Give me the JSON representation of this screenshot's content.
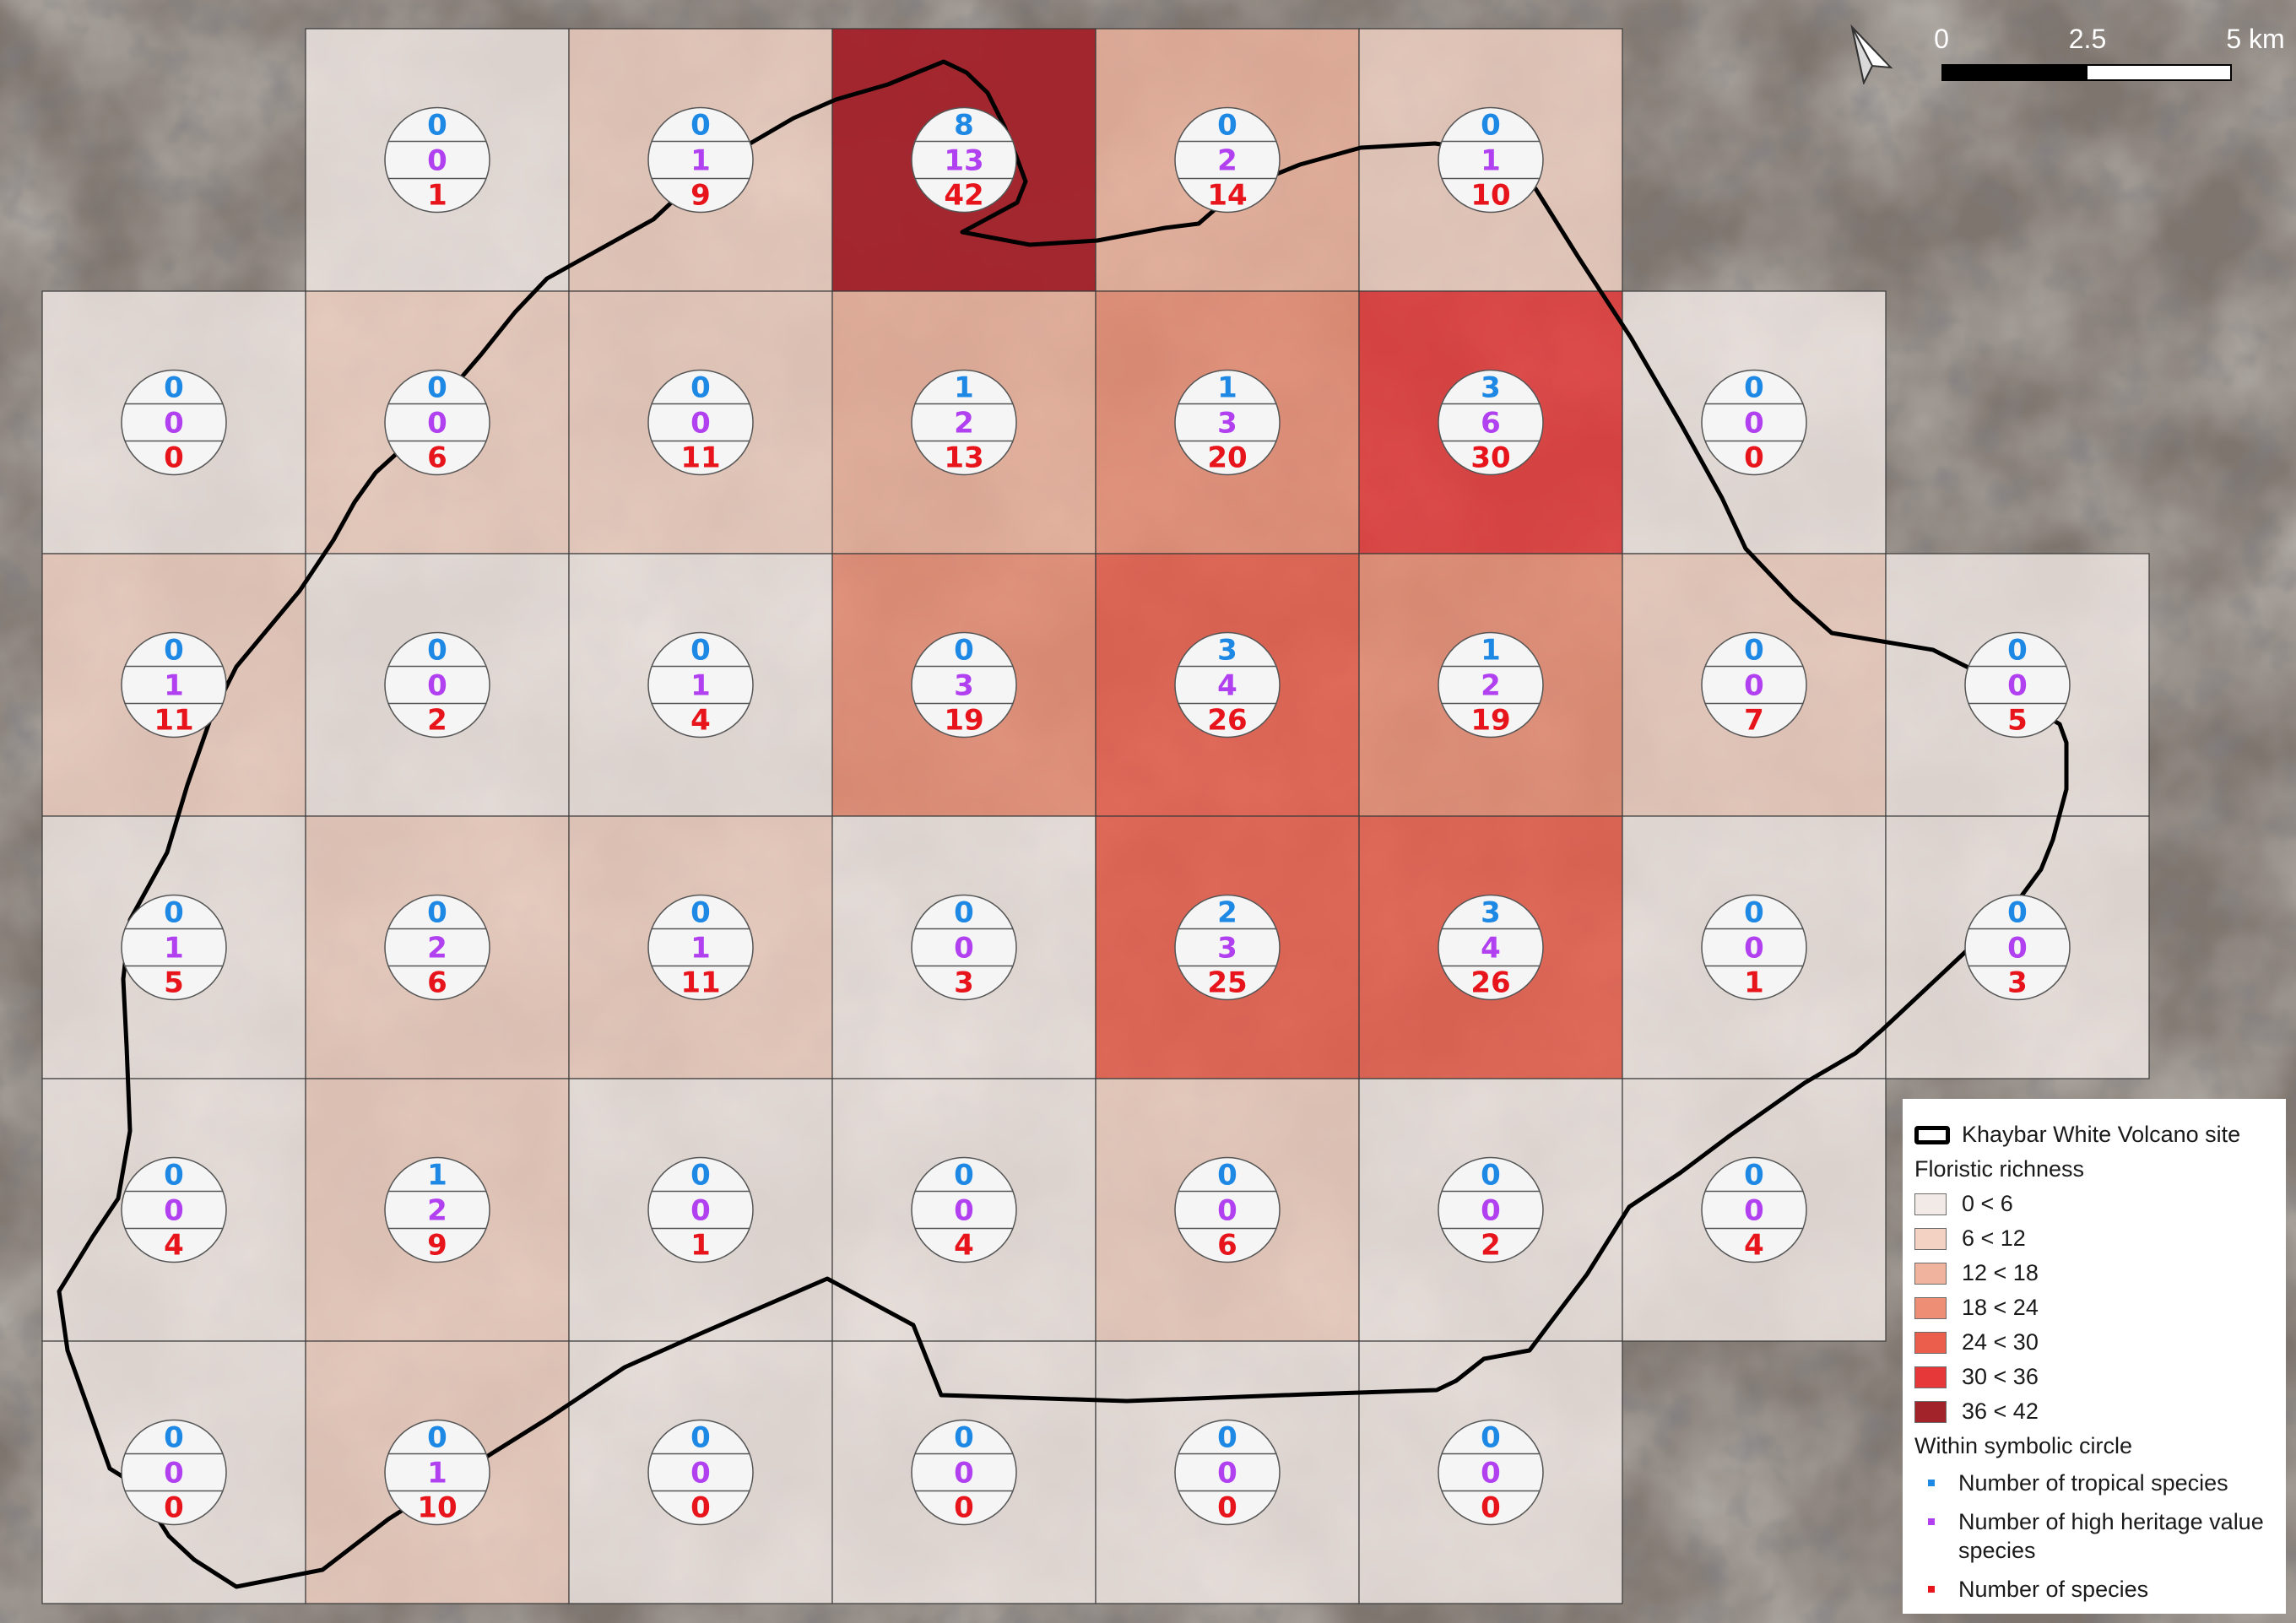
{
  "colors": {
    "tropical": "#1E88E5",
    "heritage": "#B040F0",
    "species": "#E8141B",
    "site_boundary": "#000000",
    "classes": [
      "#F2EAE6",
      "#F3D2C4",
      "#F0B49E",
      "#EE8E74",
      "#EC5E4C",
      "#E63838",
      "#A3232B"
    ],
    "background": "#7E756E"
  },
  "scale": {
    "labels": [
      "0",
      "2.5",
      "5 km"
    ]
  },
  "north_arrow": {
    "icon": "north-arrow-icon"
  },
  "legend": {
    "site_label": "Khaybar White Volcano site",
    "richness_title": "Floristic richness",
    "classes": [
      "0 < 6",
      "6 < 12",
      "12 < 18",
      "18 < 24",
      "24 < 30",
      "30 < 36",
      "36 < 42"
    ],
    "circle_title": "Within symbolic circle",
    "items": [
      {
        "label": "Number of tropical species",
        "color_key": "tropical"
      },
      {
        "label": "Number of high heritage value species",
        "color_key": "heritage"
      },
      {
        "label": "Number of species",
        "color_key": "species"
      }
    ]
  },
  "grid": {
    "rows": 6,
    "cols": 8,
    "cells": [
      {
        "row": 0,
        "col": 1,
        "tropical": "0",
        "heritage": "0",
        "species": "1"
      },
      {
        "row": 0,
        "col": 2,
        "tropical": "0",
        "heritage": "1",
        "species": "9"
      },
      {
        "row": 0,
        "col": 3,
        "tropical": "8",
        "heritage": "13",
        "species": "42"
      },
      {
        "row": 0,
        "col": 4,
        "tropical": "0",
        "heritage": "2",
        "species": "14"
      },
      {
        "row": 0,
        "col": 5,
        "tropical": "0",
        "heritage": "1",
        "species": "10"
      },
      {
        "row": 1,
        "col": 0,
        "tropical": "0",
        "heritage": "0",
        "species": "0"
      },
      {
        "row": 1,
        "col": 1,
        "tropical": "0",
        "heritage": "0",
        "species": "6"
      },
      {
        "row": 1,
        "col": 2,
        "tropical": "0",
        "heritage": "0",
        "species": "11"
      },
      {
        "row": 1,
        "col": 3,
        "tropical": "1",
        "heritage": "2",
        "species": "13"
      },
      {
        "row": 1,
        "col": 4,
        "tropical": "1",
        "heritage": "3",
        "species": "20"
      },
      {
        "row": 1,
        "col": 5,
        "tropical": "3",
        "heritage": "6",
        "species": "30"
      },
      {
        "row": 1,
        "col": 6,
        "tropical": "0",
        "heritage": "0",
        "species": "0"
      },
      {
        "row": 2,
        "col": 0,
        "tropical": "0",
        "heritage": "1",
        "species": "11"
      },
      {
        "row": 2,
        "col": 1,
        "tropical": "0",
        "heritage": "0",
        "species": "2"
      },
      {
        "row": 2,
        "col": 2,
        "tropical": "0",
        "heritage": "1",
        "species": "4"
      },
      {
        "row": 2,
        "col": 3,
        "tropical": "0",
        "heritage": "3",
        "species": "19"
      },
      {
        "row": 2,
        "col": 4,
        "tropical": "3",
        "heritage": "4",
        "species": "26"
      },
      {
        "row": 2,
        "col": 5,
        "tropical": "1",
        "heritage": "2",
        "species": "19"
      },
      {
        "row": 2,
        "col": 6,
        "tropical": "0",
        "heritage": "0",
        "species": "7"
      },
      {
        "row": 2,
        "col": 7,
        "tropical": "0",
        "heritage": "0",
        "species": "5"
      },
      {
        "row": 3,
        "col": 0,
        "tropical": "0",
        "heritage": "1",
        "species": "5"
      },
      {
        "row": 3,
        "col": 1,
        "tropical": "0",
        "heritage": "2",
        "species": "6"
      },
      {
        "row": 3,
        "col": 2,
        "tropical": "0",
        "heritage": "1",
        "species": "11"
      },
      {
        "row": 3,
        "col": 3,
        "tropical": "0",
        "heritage": "0",
        "species": "3"
      },
      {
        "row": 3,
        "col": 4,
        "tropical": "2",
        "heritage": "3",
        "species": "25"
      },
      {
        "row": 3,
        "col": 5,
        "tropical": "3",
        "heritage": "4",
        "species": "26"
      },
      {
        "row": 3,
        "col": 6,
        "tropical": "0",
        "heritage": "0",
        "species": "1"
      },
      {
        "row": 3,
        "col": 7,
        "tropical": "0",
        "heritage": "0",
        "species": "3"
      },
      {
        "row": 4,
        "col": 0,
        "tropical": "0",
        "heritage": "0",
        "species": "4"
      },
      {
        "row": 4,
        "col": 1,
        "tropical": "1",
        "heritage": "2",
        "species": "9"
      },
      {
        "row": 4,
        "col": 2,
        "tropical": "0",
        "heritage": "0",
        "species": "1"
      },
      {
        "row": 4,
        "col": 3,
        "tropical": "0",
        "heritage": "0",
        "species": "4"
      },
      {
        "row": 4,
        "col": 4,
        "tropical": "0",
        "heritage": "0",
        "species": "6"
      },
      {
        "row": 4,
        "col": 5,
        "tropical": "0",
        "heritage": "0",
        "species": "2"
      },
      {
        "row": 4,
        "col": 6,
        "tropical": "0",
        "heritage": "0",
        "species": "4"
      },
      {
        "row": 5,
        "col": 0,
        "tropical": "0",
        "heritage": "0",
        "species": "0"
      },
      {
        "row": 5,
        "col": 1,
        "tropical": "0",
        "heritage": "1",
        "species": "10"
      },
      {
        "row": 5,
        "col": 2,
        "tropical": "0",
        "heritage": "0",
        "species": "0"
      },
      {
        "row": 5,
        "col": 3,
        "tropical": "0",
        "heritage": "0",
        "species": "0"
      },
      {
        "row": 5,
        "col": 4,
        "tropical": "0",
        "heritage": "0",
        "species": "0"
      },
      {
        "row": 5,
        "col": 5,
        "tropical": "0",
        "heritage": "0",
        "species": "0"
      }
    ]
  }
}
